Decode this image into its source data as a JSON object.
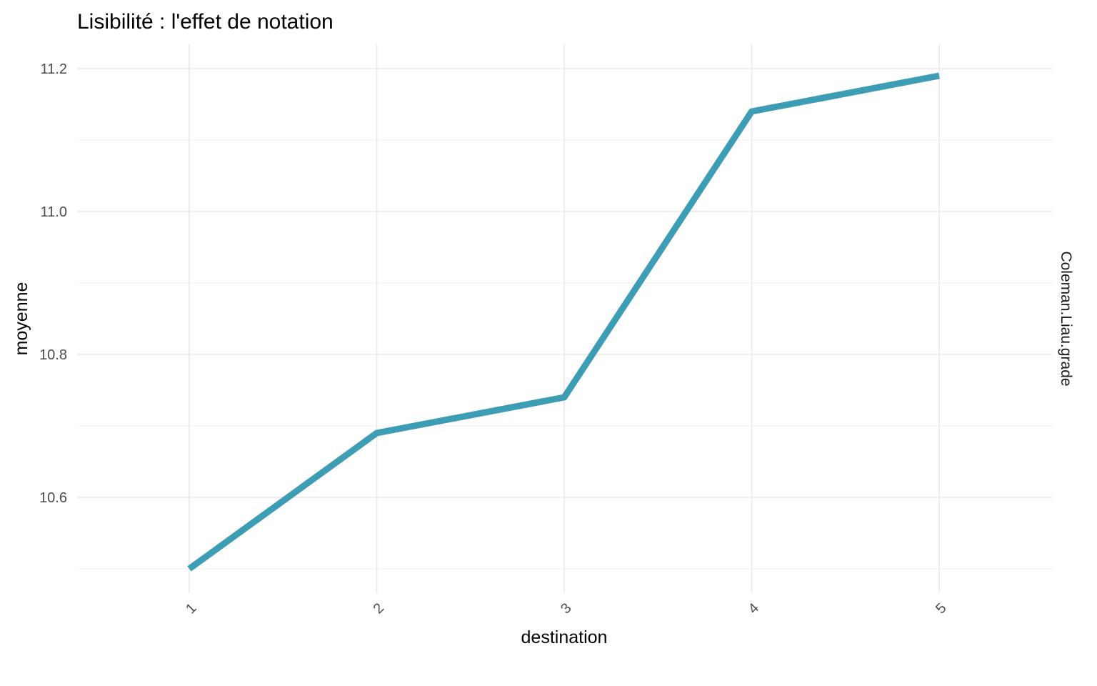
{
  "chart_data": {
    "type": "line",
    "title": "Lisibilité : l'effet de notation",
    "xlabel": "destination",
    "ylabel": "moyenne",
    "facet_label": "Coleman.Liau.grade",
    "x": [
      "1",
      "2",
      "3",
      "4",
      "5"
    ],
    "series": [
      {
        "values": [
          10.5,
          10.69,
          10.74,
          11.14,
          11.19
        ],
        "color": "#3d9db5"
      }
    ],
    "y_ticks": [
      "10.6",
      "10.8",
      "11.0",
      "11.2"
    ],
    "ylim": [
      10.47,
      11.23
    ],
    "grid": true,
    "x_tick_rotation": "45-degree"
  }
}
